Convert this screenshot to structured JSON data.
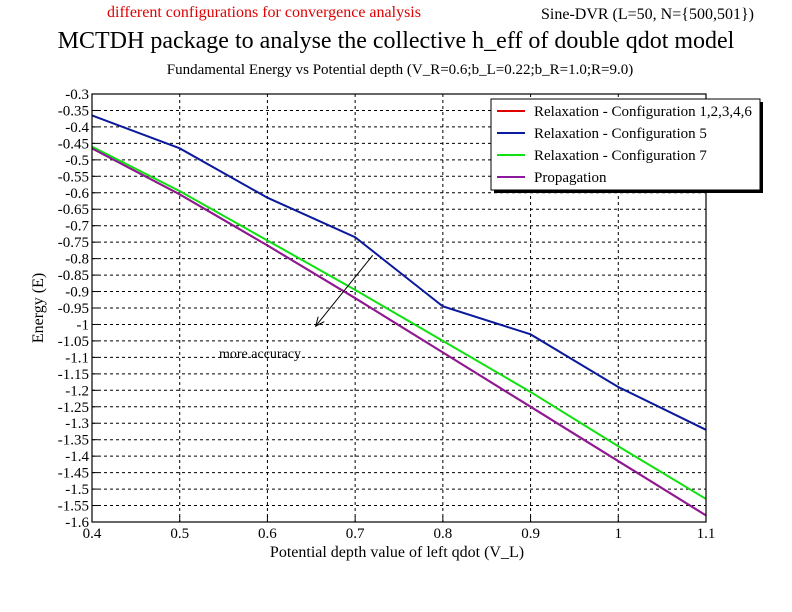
{
  "header": {
    "left_note": "different configurations for convergence analysis",
    "right_note": "Sine-DVR (L=50, N={500,501})",
    "title": "MCTDH package to analyse the collective h_eff of double qdot model",
    "subtitle": "Fundamental Energy vs Potential depth (V_R=0.6;b_L=0.22;b_R=1.0;R=9.0)"
  },
  "chart_data": {
    "type": "line",
    "xlabel": "Potential depth value of left qdot (V_L)",
    "ylabel": "Energy (E)",
    "xlim": [
      0.4,
      1.1
    ],
    "ylim": [
      -1.6,
      -0.3
    ],
    "xticks": [
      0.4,
      0.5,
      0.6,
      0.7,
      0.8,
      0.9,
      1,
      1.1
    ],
    "xtick_labels": [
      "0.4",
      "0.5",
      "0.6",
      "0.7",
      "0.8",
      "0.9",
      "1",
      "1.1"
    ],
    "yticks": [
      -0.3,
      -0.35,
      -0.4,
      -0.45,
      -0.5,
      -0.55,
      -0.6,
      -0.65,
      -0.7,
      -0.75,
      -0.8,
      -0.85,
      -0.9,
      -0.95,
      -1,
      -1.05,
      -1.1,
      -1.15,
      -1.2,
      -1.25,
      -1.3,
      -1.35,
      -1.4,
      -1.45,
      -1.5,
      -1.55,
      -1.6
    ],
    "ytick_labels": [
      "-0.3",
      "-0.35",
      "-0.4",
      "-0.45",
      "-0.5",
      "-0.55",
      "-0.6",
      "-0.65",
      "-0.7",
      "-0.75",
      "-0.8",
      "-0.85",
      "-0.9",
      "-0.95",
      "-1",
      "-1.05",
      "-1.1",
      "-1.15",
      "-1.2",
      "-1.25",
      "-1.3",
      "-1.35",
      "-1.4",
      "-1.45",
      "-1.5",
      "-1.55",
      "-1.6"
    ],
    "grid": true,
    "legend_position": "top-right",
    "x": [
      0.4,
      0.5,
      0.6,
      0.7,
      0.8,
      0.9,
      1.0,
      1.1
    ],
    "series": [
      {
        "name": "Relaxation - Configuration 1,2,3,4,6",
        "color": "#e00000",
        "values": [
          -0.465,
          -0.605,
          -0.76,
          -0.92,
          -1.085,
          -1.25,
          -1.415,
          -1.58
        ]
      },
      {
        "name": "Relaxation - Configuration 5",
        "color": "#0a1a9a",
        "values": [
          -0.365,
          -0.465,
          -0.615,
          -0.735,
          -0.945,
          -1.03,
          -1.19,
          -1.32
        ]
      },
      {
        "name": "Relaxation - Configuration 7",
        "color": "#10e010",
        "values": [
          -0.46,
          -0.595,
          -0.745,
          -0.895,
          -1.05,
          -1.205,
          -1.37,
          -1.53
        ]
      },
      {
        "name": "Propagation",
        "color": "#8a1a9a",
        "values": [
          -0.465,
          -0.605,
          -0.76,
          -0.92,
          -1.085,
          -1.25,
          -1.415,
          -1.58
        ]
      }
    ],
    "annotation": {
      "text": "more accuracy",
      "arrow_from": [
        0.72,
        -0.79
      ],
      "arrow_to": [
        0.655,
        -1.005
      ]
    }
  }
}
